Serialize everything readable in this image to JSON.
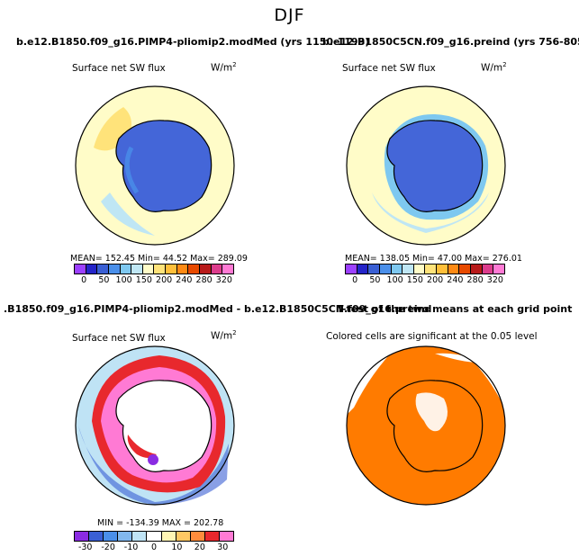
{
  "suptitle": "DJF",
  "colors": {
    "abs_scale": [
      "#9c40ff",
      "#2424c8",
      "#3a5fd4",
      "#4a8fea",
      "#7ec8f0",
      "#bfe6f4",
      "#fffcc8",
      "#ffe37a",
      "#ffbf3a",
      "#ff8a14",
      "#e84a00",
      "#b81a1a",
      "#dc3c8c",
      "#ff7ad4"
    ],
    "diff_scale": [
      "#8a2be2",
      "#3a5fd4",
      "#4a8fea",
      "#82b8ee",
      "#bfe3f5",
      "#ffffff",
      "#fff5b4",
      "#ffc864",
      "#ff8c3c",
      "#e8282d",
      "#ff7ad4"
    ],
    "land": "#4466d8",
    "sig": "#ff7b00"
  },
  "chart_data": [
    {
      "type": "heatmap",
      "panel": "top-left",
      "title": "b.e12.B1850.f09_g16.PIMP4-pliomip2.modMed (yrs 1150-1199)",
      "variable": "Surface net SW flux",
      "units": "W/m",
      "units_exp": "2",
      "stats": "MEAN= 152.45   Min=  44.52   Max= 289.09",
      "colorbar_ticks": [
        "0",
        "50",
        "100",
        "150",
        "200",
        "240",
        "280",
        "320"
      ],
      "levels": [
        0,
        25,
        50,
        75,
        100,
        125,
        150,
        175,
        200,
        220,
        240,
        260,
        280,
        300,
        320
      ]
    },
    {
      "type": "heatmap",
      "panel": "top-right",
      "title": "b.e12.B1850C5CN.f09_g16.preind (yrs 756-805)",
      "variable": "Surface net SW flux",
      "units": "W/m",
      "units_exp": "2",
      "stats": "MEAN= 138.05   Min=  47.00   Max= 276.01",
      "colorbar_ticks": [
        "0",
        "50",
        "100",
        "150",
        "200",
        "240",
        "280",
        "320"
      ],
      "levels": [
        0,
        25,
        50,
        75,
        100,
        125,
        150,
        175,
        200,
        220,
        240,
        260,
        280,
        300,
        320
      ]
    },
    {
      "type": "heatmap",
      "panel": "bottom-left",
      "title": ".B1850.f09_g16.PIMP4-pliomip2.modMed - b.e12.B1850C5CN.f09_g16.preind",
      "variable": "Surface net SW flux",
      "units": "W/m",
      "units_exp": "2",
      "stats": "MIN = -134.39   MAX = 202.78",
      "colorbar_ticks": [
        "-30",
        "-20",
        "-10",
        "0",
        "10",
        "20",
        "30"
      ],
      "levels": [
        -40,
        -30,
        -20,
        -10,
        -5,
        0,
        5,
        10,
        20,
        30,
        40
      ]
    },
    {
      "type": "heatmap",
      "panel": "bottom-right",
      "title": "T-test of the two means at each grid point",
      "subtitle": "Colored cells are significant at the 0.05 level",
      "significance_level": 0.05
    }
  ]
}
